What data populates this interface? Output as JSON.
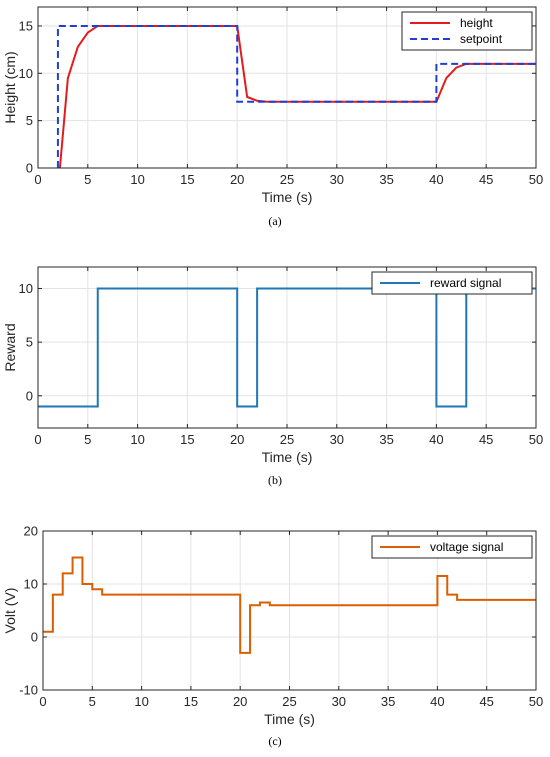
{
  "chart_data": [
    {
      "type": "line",
      "caption": "(a)",
      "xlabel": "Time (s)",
      "ylabel": "Height (cm)",
      "xlim": [
        0,
        50
      ],
      "ylim": [
        0,
        17
      ],
      "xticks": [
        0,
        5,
        10,
        15,
        20,
        25,
        30,
        35,
        40,
        45,
        50
      ],
      "yticks": [
        0,
        5,
        10,
        15
      ],
      "grid": true,
      "legend_position": "top-right",
      "series": [
        {
          "name": "height",
          "color": "#e41a1c",
          "style": "solid",
          "x": [
            2.2,
            3,
            4,
            5,
            6,
            7,
            20,
            21,
            22,
            23,
            40,
            41,
            42,
            43,
            50
          ],
          "y": [
            0,
            9.5,
            12.8,
            14.3,
            15,
            15,
            15,
            7.5,
            7.1,
            7,
            7,
            9.5,
            10.6,
            11,
            11
          ]
        },
        {
          "name": "setpoint",
          "color": "#1f3fd6",
          "style": "dashed",
          "x": [
            2,
            2,
            20,
            20,
            40,
            40,
            50
          ],
          "y": [
            0,
            15,
            15,
            7,
            7,
            11,
            11
          ]
        }
      ]
    },
    {
      "type": "line",
      "caption": "(b)",
      "xlabel": "Time (s)",
      "ylabel": "Reward",
      "xlim": [
        0,
        50
      ],
      "ylim": [
        -3,
        12
      ],
      "xticks": [
        0,
        5,
        10,
        15,
        20,
        25,
        30,
        35,
        40,
        45,
        50
      ],
      "yticks": [
        0,
        5,
        10
      ],
      "grid": true,
      "legend_position": "top-right",
      "series": [
        {
          "name": "reward signal",
          "color": "#1f77b4",
          "style": "solid",
          "x": [
            0,
            6,
            6,
            20,
            20,
            22,
            22,
            40,
            40,
            43,
            43,
            50
          ],
          "y": [
            -1,
            -1,
            10,
            10,
            -1,
            -1,
            10,
            10,
            -1,
            -1,
            10,
            10
          ]
        }
      ]
    },
    {
      "type": "line",
      "caption": "(c)",
      "xlabel": "Time (s)",
      "ylabel": "Volt (V)",
      "xlim": [
        0,
        50
      ],
      "ylim": [
        -10,
        20
      ],
      "xticks": [
        0,
        5,
        10,
        15,
        20,
        25,
        30,
        35,
        40,
        45,
        50
      ],
      "yticks": [
        -10,
        0,
        10,
        20
      ],
      "grid": true,
      "legend_position": "top-right",
      "series": [
        {
          "name": "voltage signal",
          "color": "#d95f02",
          "style": "solid",
          "x": [
            0,
            1,
            1,
            2,
            2,
            3,
            3,
            4,
            4,
            5,
            5,
            6,
            6,
            20,
            20,
            21,
            21,
            22,
            22,
            23,
            23,
            40,
            40,
            41,
            41,
            42,
            42,
            50
          ],
          "y": [
            1,
            1,
            8,
            8,
            12,
            12,
            15,
            15,
            10,
            10,
            9,
            9,
            8,
            8,
            -3,
            -3,
            6,
            6,
            6.5,
            6.5,
            6,
            6,
            11.5,
            11.5,
            8,
            8,
            7,
            7
          ]
        }
      ]
    }
  ]
}
